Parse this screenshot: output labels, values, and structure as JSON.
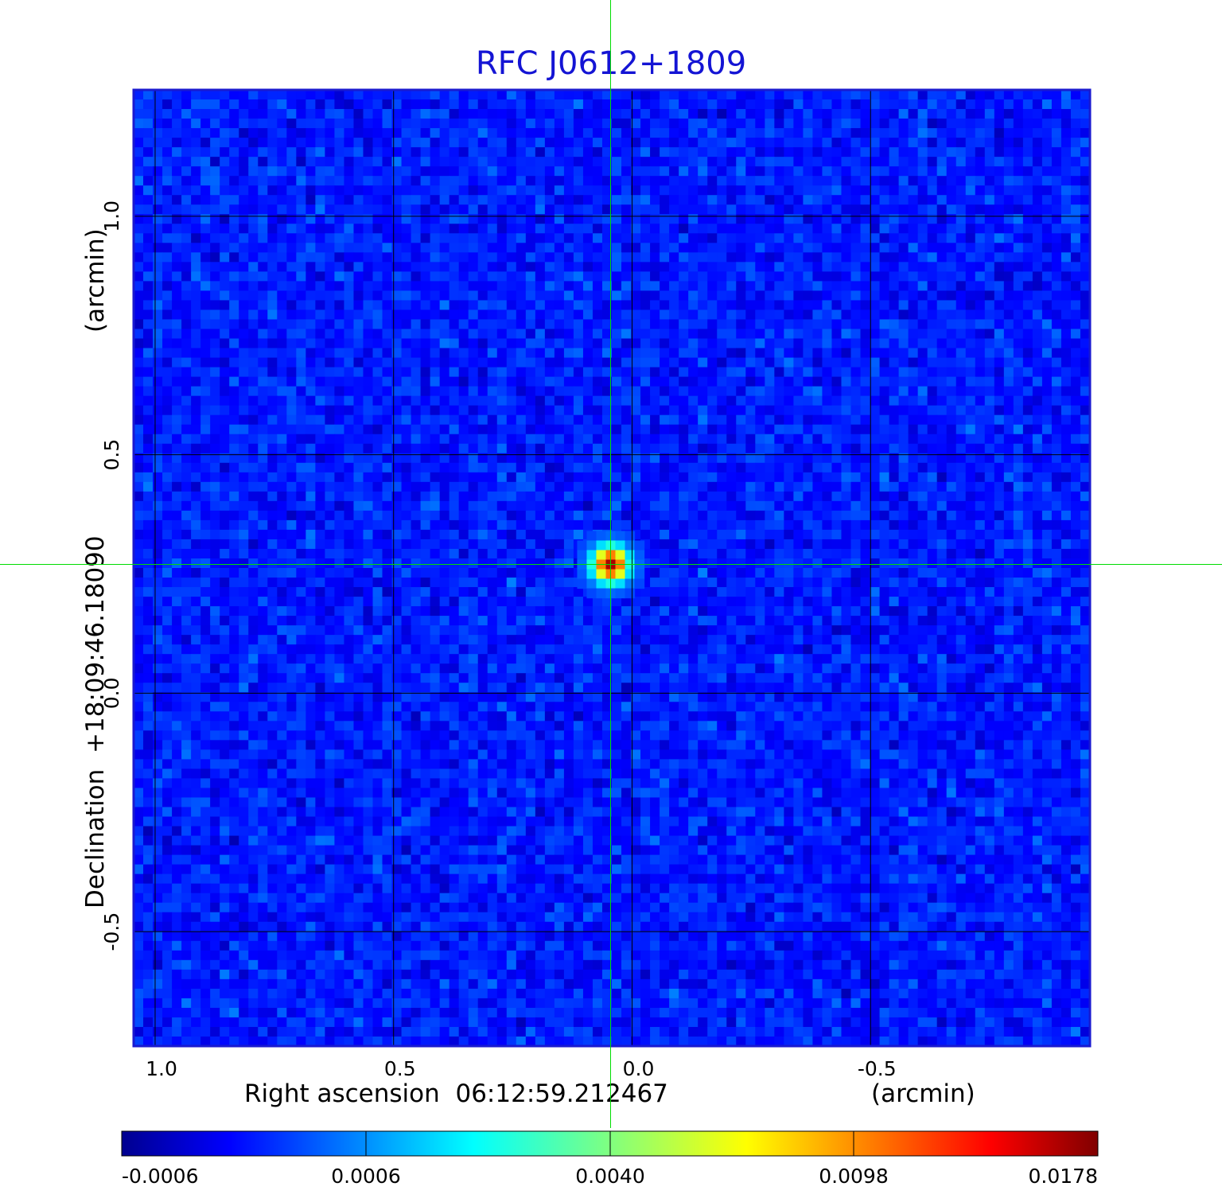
{
  "chart_data": {
    "type": "heatmap",
    "title": "RFC J0612+1809",
    "xlabel": "Right ascension  06:12:59.212467",
    "xunit": "(arcmin)",
    "ylabel": "Declination  +18:09:46.18090",
    "yunit": "(arcmin)",
    "x_ticks": [
      "1.0",
      "0.5",
      "0.0",
      "-0.5"
    ],
    "x_tick_values": [
      1.0,
      0.5,
      0.0,
      -0.5
    ],
    "y_ticks": [
      "1.0",
      "0.5",
      "0.0",
      "-0.5"
    ],
    "y_tick_values": [
      1.0,
      0.5,
      0.0,
      -0.5
    ],
    "xlim": [
      1.045,
      -0.96
    ],
    "ylim": [
      -0.74,
      1.265
    ],
    "x_direction": "decreasing to the right",
    "grid": true,
    "crosshair": {
      "x": 0.045,
      "y": 0.27,
      "color": "#00dd00"
    },
    "source": {
      "x": 0.045,
      "y": 0.27,
      "peak": 0.0178
    },
    "colorbar": {
      "ticks": [
        "-0.0006",
        "0.0006",
        "0.0040",
        "0.0098",
        "0.0178"
      ],
      "tick_values": [
        -0.0006,
        0.0006,
        0.004,
        0.0098,
        0.0178
      ],
      "colormap": "jet",
      "placement": "bottom"
    },
    "colors": {
      "title": "#1414d4",
      "frame": "#1a1ad0",
      "background_noise": "#1e5cf0"
    }
  }
}
